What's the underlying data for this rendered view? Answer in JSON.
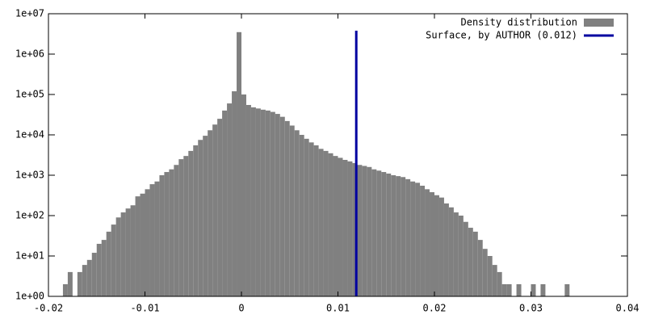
{
  "chart_data": {
    "type": "histogram",
    "log_y": true,
    "bins": [
      -0.0185,
      -0.018,
      -0.0175,
      -0.017,
      -0.0165,
      -0.016,
      -0.0155,
      -0.015,
      -0.0145,
      -0.014,
      -0.0135,
      -0.013,
      -0.0125,
      -0.012,
      -0.0115,
      -0.011,
      -0.0105,
      -0.01,
      -0.0095,
      -0.009,
      -0.0085,
      -0.008,
      -0.0075,
      -0.007,
      -0.0065,
      -0.006,
      -0.0055,
      -0.005,
      -0.0045,
      -0.004,
      -0.0035,
      -0.003,
      -0.0025,
      -0.002,
      -0.0015,
      -0.001,
      -0.0005,
      0,
      0.0005,
      0.001,
      0.0015,
      0.002,
      0.0025,
      0.003,
      0.0035,
      0.004,
      0.0045,
      0.005,
      0.0055,
      0.006,
      0.0065,
      0.007,
      0.0075,
      0.008,
      0.0085,
      0.009,
      0.0095,
      0.01,
      0.0105,
      0.011,
      0.0115,
      0.012,
      0.0125,
      0.013,
      0.0135,
      0.014,
      0.0145,
      0.015,
      0.0155,
      0.016,
      0.0165,
      0.017,
      0.0175,
      0.018,
      0.0185,
      0.019,
      0.0195,
      0.02,
      0.0205,
      0.021,
      0.0215,
      0.022,
      0.0225,
      0.023,
      0.0235,
      0.024,
      0.0245,
      0.025,
      0.0255,
      0.026,
      0.0265,
      0.027,
      0.0275,
      0.028,
      0.0285,
      0.029,
      0.0295,
      0.03,
      0.0305,
      0.031,
      0.0315,
      0.032,
      0.0325,
      0.033,
      0.0335,
      0.034,
      0.0345
    ],
    "series": [
      {
        "name": "Density distribution",
        "color": "#808080",
        "values": [
          2,
          4,
          1,
          4,
          6,
          8,
          12,
          20,
          25,
          40,
          60,
          90,
          120,
          150,
          180,
          300,
          350,
          450,
          600,
          700,
          1000,
          1200,
          1400,
          1800,
          2500,
          3000,
          4000,
          5500,
          7500,
          9500,
          13000,
          18000,
          25000,
          40000,
          60000,
          120000,
          3500000,
          100000,
          55000,
          48000,
          45000,
          42000,
          40000,
          37000,
          33000,
          28000,
          22000,
          17000,
          13000,
          10000,
          8000,
          6500,
          5500,
          4500,
          4000,
          3500,
          3000,
          2700,
          2400,
          2200,
          2000,
          1800,
          1700,
          1600,
          1400,
          1300,
          1200,
          1100,
          1000,
          950,
          900,
          800,
          700,
          650,
          550,
          450,
          380,
          320,
          280,
          200,
          160,
          120,
          100,
          70,
          50,
          40,
          25,
          15,
          10,
          6,
          4,
          2,
          2,
          1,
          2,
          1,
          1,
          2,
          1,
          2,
          1,
          1,
          1,
          1,
          2,
          1
        ]
      }
    ],
    "vline": {
      "name": "Surface, by AUTHOR (0.012)",
      "color": "#0000a0",
      "x": 0.0119,
      "y": [
        1,
        3800000
      ]
    },
    "xlim": [
      -0.02,
      0.04
    ],
    "xticks": [
      -0.02,
      -0.01,
      0,
      0.01,
      0.02,
      0.03,
      0.04
    ],
    "ylim": [
      1,
      10000000
    ],
    "yticks": [
      {
        "value": 1,
        "label": "1e+00"
      },
      {
        "value": 10,
        "label": "1e+01"
      },
      {
        "value": 100,
        "label": "1e+02"
      },
      {
        "value": 1000,
        "label": "1e+03"
      },
      {
        "value": 10000,
        "label": "1e+04"
      },
      {
        "value": 100000,
        "label": "1e+05"
      },
      {
        "value": 1000000,
        "label": "1e+06"
      },
      {
        "value": 10000000,
        "label": "1e+07"
      }
    ],
    "legend": "top-right"
  }
}
